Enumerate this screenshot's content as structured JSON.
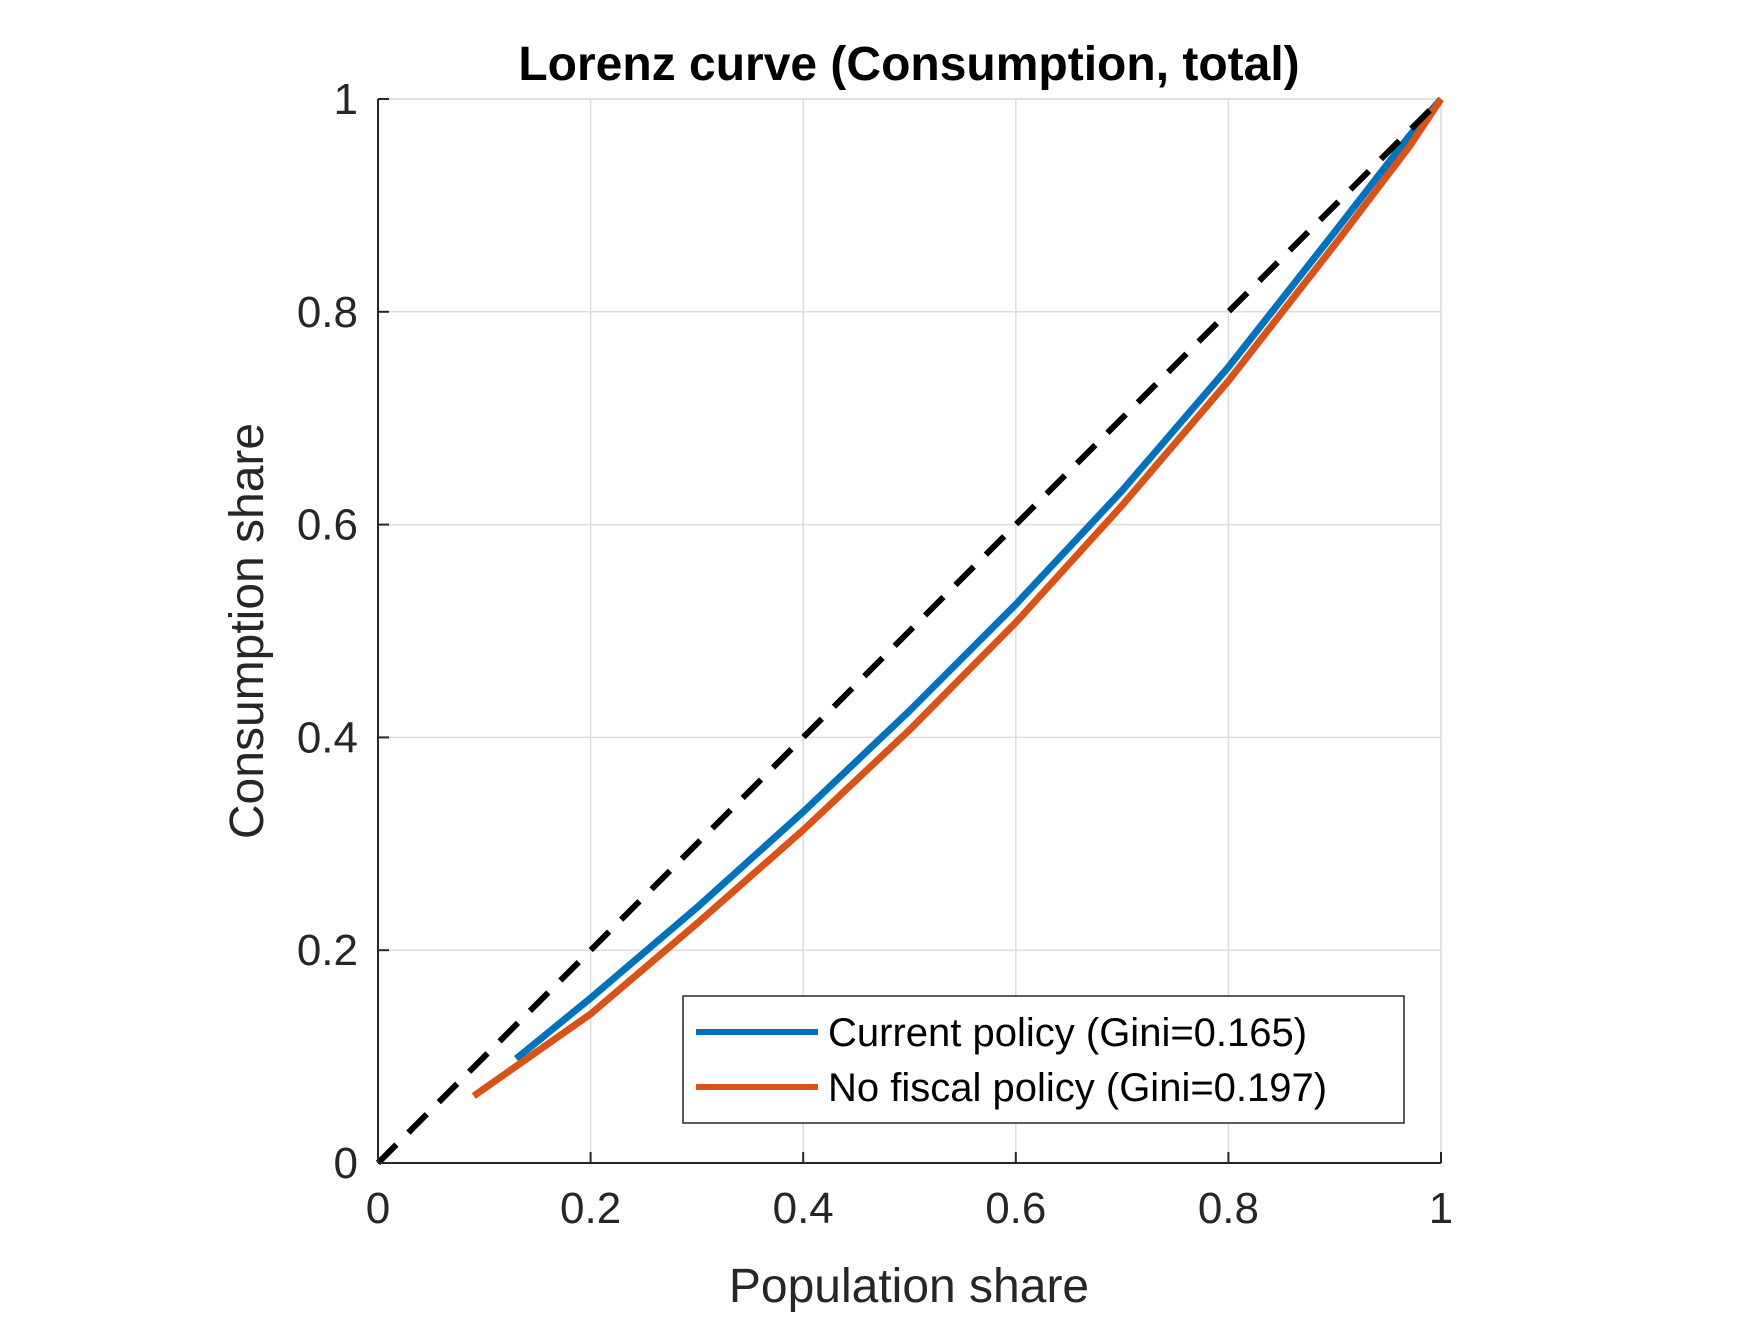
{
  "chart_data": {
    "type": "line",
    "title": "Lorenz curve (Consumption, total)",
    "xlabel": "Population share",
    "ylabel": "Consumption share",
    "xlim": [
      0,
      1
    ],
    "ylim": [
      0,
      1
    ],
    "grid": true,
    "legend_position": "bottom-right",
    "x_ticks": [
      "0",
      "0.2",
      "0.4",
      "0.6",
      "0.8",
      "1"
    ],
    "y_ticks": [
      "0",
      "0.2",
      "0.4",
      "0.6",
      "0.8",
      "1"
    ],
    "equality_line": {
      "x": [
        0,
        1
      ],
      "y": [
        0,
        1
      ],
      "color": "#000000",
      "style": "dashed"
    },
    "series": [
      {
        "name": "Current policy (Gini=0.165)",
        "color": "#0072BD",
        "x": [
          0.13,
          0.2,
          0.3,
          0.4,
          0.5,
          0.6,
          0.7,
          0.8,
          0.9,
          0.97,
          1.0
        ],
        "y": [
          0.098,
          0.155,
          0.24,
          0.33,
          0.425,
          0.525,
          0.632,
          0.748,
          0.875,
          0.965,
          1.0
        ]
      },
      {
        "name": "No fiscal policy (Gini=0.197)",
        "color": "#D95319",
        "x": [
          0.09,
          0.2,
          0.3,
          0.4,
          0.5,
          0.6,
          0.7,
          0.8,
          0.9,
          0.97,
          1.0
        ],
        "y": [
          0.063,
          0.14,
          0.225,
          0.313,
          0.407,
          0.508,
          0.618,
          0.735,
          0.863,
          0.955,
          1.0
        ]
      }
    ]
  }
}
